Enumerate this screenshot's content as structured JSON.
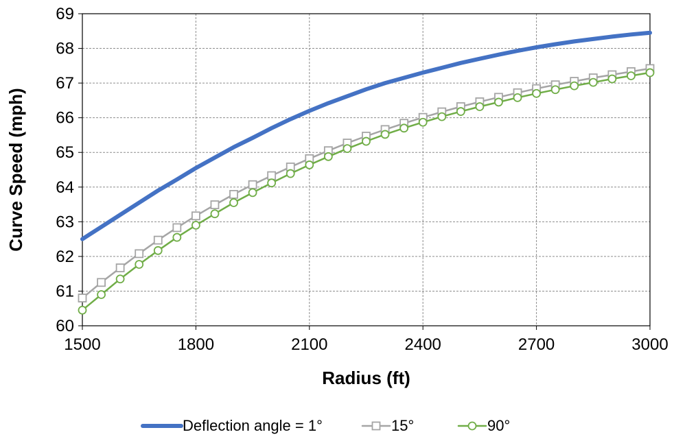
{
  "chart_data": {
    "type": "line",
    "title": "",
    "xlabel": "Radius (ft)",
    "ylabel": "Curve Speed (mph)",
    "xlim": [
      1500,
      3000
    ],
    "ylim": [
      60,
      69
    ],
    "xticks": [
      "1500",
      "1800",
      "2100",
      "2400",
      "2700",
      "3000"
    ],
    "yticks": [
      "60",
      "61",
      "62",
      "63",
      "64",
      "65",
      "66",
      "67",
      "68",
      "69"
    ],
    "grid": true,
    "legend_position": "bottom",
    "x": [
      1500,
      1550,
      1600,
      1650,
      1700,
      1750,
      1800,
      1850,
      1900,
      1950,
      2000,
      2050,
      2100,
      2150,
      2200,
      2250,
      2300,
      2350,
      2400,
      2450,
      2500,
      2550,
      2600,
      2650,
      2700,
      2750,
      2800,
      2850,
      2900,
      2950,
      3000
    ],
    "series": [
      {
        "name": "Deflection angle = 1°",
        "color": "#4472C4",
        "marker": "none",
        "values": [
          62.5,
          62.85,
          63.2,
          63.55,
          63.9,
          64.22,
          64.55,
          64.85,
          65.15,
          65.42,
          65.7,
          65.96,
          66.2,
          66.42,
          66.62,
          66.82,
          67.0,
          67.15,
          67.3,
          67.44,
          67.58,
          67.7,
          67.82,
          67.93,
          68.03,
          68.12,
          68.2,
          68.27,
          68.34,
          68.4,
          68.45
        ]
      },
      {
        "name": "15°",
        "color": "#A5A5A5",
        "marker": "square",
        "values": [
          60.8,
          61.25,
          61.67,
          62.08,
          62.47,
          62.83,
          63.17,
          63.49,
          63.79,
          64.07,
          64.33,
          64.58,
          64.82,
          65.05,
          65.27,
          65.47,
          65.66,
          65.84,
          66.01,
          66.17,
          66.32,
          66.46,
          66.59,
          66.72,
          66.84,
          66.95,
          67.05,
          67.15,
          67.24,
          67.33,
          67.42
        ]
      },
      {
        "name": "90°",
        "color": "#70AD47",
        "marker": "circle",
        "values": [
          60.45,
          60.9,
          61.35,
          61.77,
          62.17,
          62.55,
          62.9,
          63.23,
          63.55,
          63.84,
          64.12,
          64.39,
          64.64,
          64.88,
          65.11,
          65.32,
          65.52,
          65.7,
          65.87,
          66.03,
          66.18,
          66.32,
          66.45,
          66.58,
          66.7,
          66.81,
          66.92,
          67.02,
          67.12,
          67.21,
          67.3
        ]
      }
    ]
  }
}
